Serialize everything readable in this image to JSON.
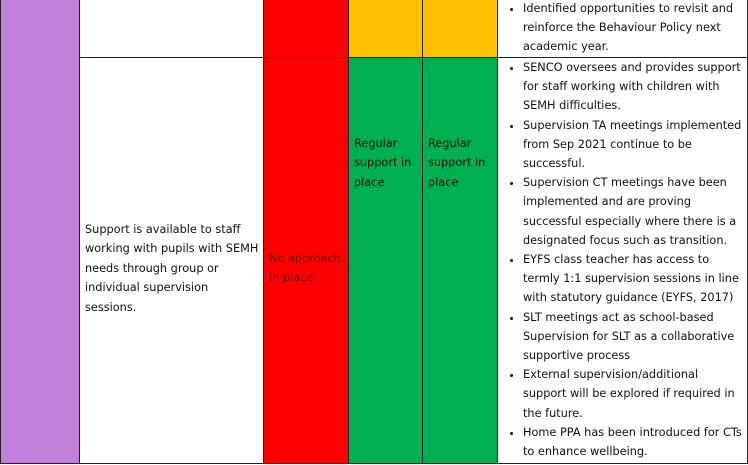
{
  "table": {
    "rows": [
      {
        "bullets": [
          "Identified opportunities to revisit and reinforce the Behaviour Policy next academic year."
        ]
      },
      {
        "description": "Support is available to staff working with pupils with SEMH needs through group or individual supervision sessions.",
        "status_1": "No approach in place",
        "status_2": "Regular support in place",
        "status_3": "Regular support in place",
        "bullets": [
          "SENCO oversees and provides support for staff working with children with SEMH difficulties.",
          "Supervision TA meetings implemented from Sep 2021 continue to be successful.",
          "Supervision CT meetings have been implemented and are proving successful especially where there is a designated focus such as transition.",
          "EYFS class teacher has access to termly 1:1 supervision sessions in line with statutory guidance (EYFS, 2017)",
          "SLT meetings act as school-based Supervision for SLT as a collaborative supportive process",
          "External supervision/additional support will be explored if required in the future.",
          "Home PPA has been introduced for CTs to enhance wellbeing."
        ]
      }
    ]
  }
}
